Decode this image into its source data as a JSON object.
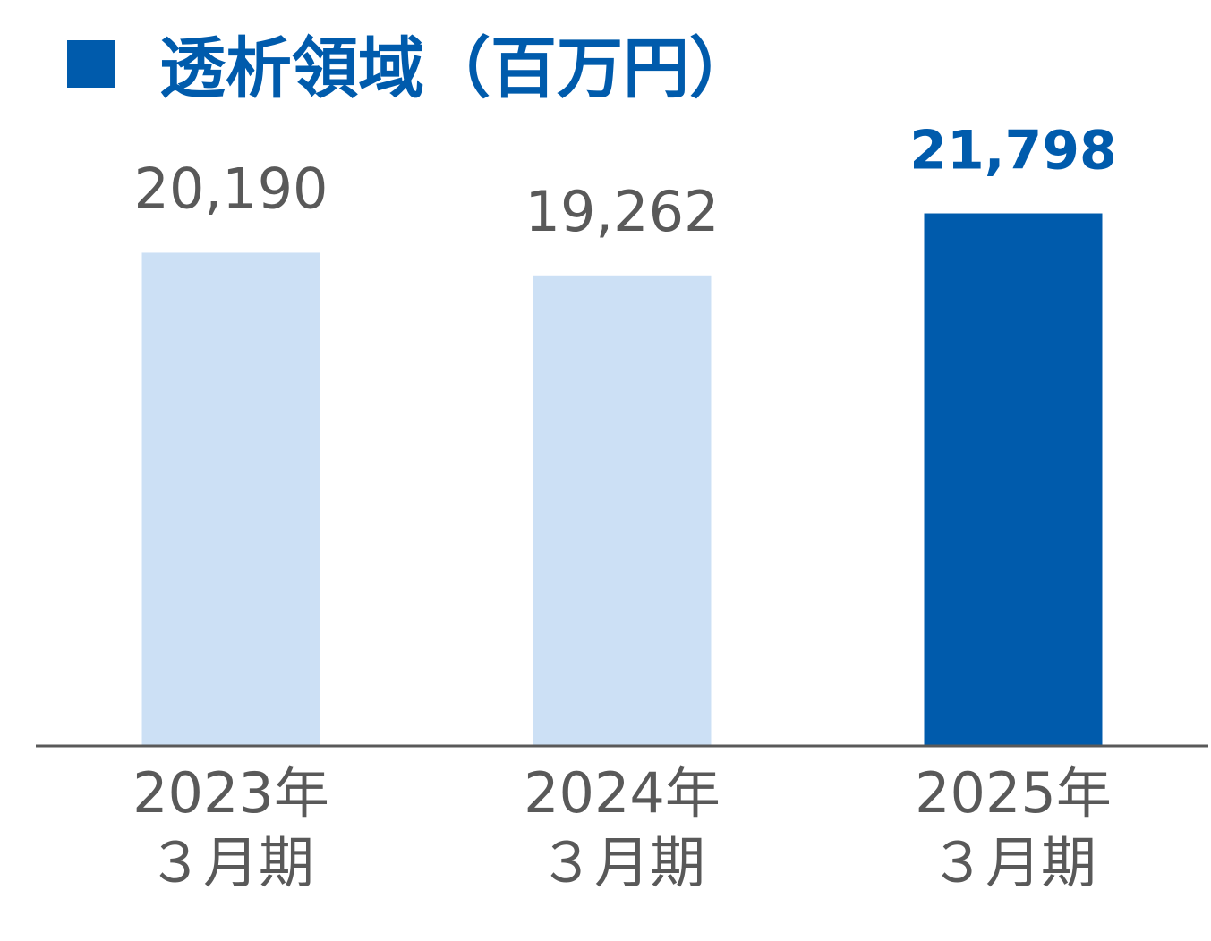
{
  "title": {
    "text": "透析領域（百万円）",
    "color": "#005BAC"
  },
  "chart_data": {
    "type": "bar",
    "title": "透析領域（百万円）",
    "xlabel": "",
    "ylabel": "",
    "ylim": [
      0,
      22000
    ],
    "grid": false,
    "legend": "none",
    "categories": [
      {
        "line1": "2023年",
        "line2": "３月期"
      },
      {
        "line1": "2024年",
        "line2": "３月期"
      },
      {
        "line1": "2025年",
        "line2": "３月期"
      }
    ],
    "values": [
      20190,
      19262,
      21798
    ],
    "value_labels": [
      "20,190",
      "19,262",
      "21,798"
    ],
    "highlight_index": 2
  },
  "colors": {
    "bar_default": "#CCE0F5",
    "bar_highlight": "#005BAC",
    "label_default": "#595959",
    "label_highlight": "#005BAC",
    "axis": "#595959"
  }
}
